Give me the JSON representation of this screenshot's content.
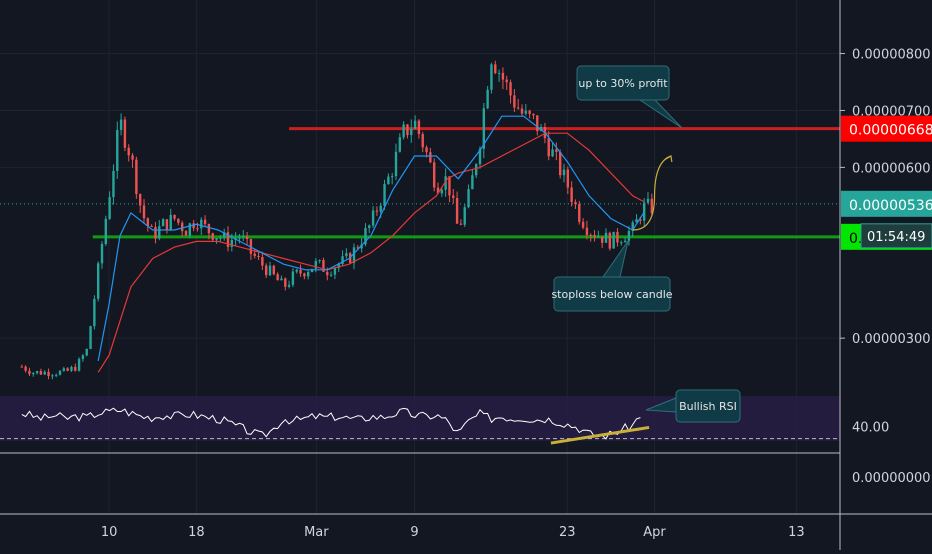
{
  "chart_data": {
    "type": "line",
    "subtype": "candlestick-price-with-rsi-panel",
    "title": "",
    "xlabel": "",
    "ylabel": "",
    "x_tick_labels": [
      "10",
      "18",
      "Mar",
      "9",
      "23",
      "Apr",
      "13"
    ],
    "x_tick_days": [
      10,
      18,
      29,
      38,
      52,
      60,
      73
    ],
    "x_range_days": [
      0,
      77
    ],
    "price_axis": {
      "ylim": [
        2.3e-06,
        8.8e-06
      ],
      "tick_labels": [
        "0.00000800",
        "0.00000700",
        "0.00000600",
        "0.00000300"
      ],
      "tick_values": [
        8e-06,
        7e-06,
        6e-06,
        3e-06
      ]
    },
    "price_markers": [
      {
        "label": "0.00000668",
        "value": 6.68e-06,
        "color": "#ff0000",
        "text_color": "#ffffff"
      },
      {
        "label": "0.00000536",
        "value": 5.36e-06,
        "color": "#26a69a",
        "text_color": "#ffffff"
      },
      {
        "label": "0.00000478",
        "value": 4.78e-06,
        "color": "#00e600",
        "text_color": "#000000"
      }
    ],
    "countdown_label": "01:54:49",
    "lower_axis_label": "0.00000000",
    "price_series": {
      "x": [
        2,
        3,
        4,
        5,
        6,
        7,
        8,
        9,
        10,
        11,
        12,
        13,
        14,
        15,
        16,
        17,
        18,
        19,
        20,
        21,
        22,
        23,
        24,
        25,
        26,
        27,
        28,
        29,
        30,
        31,
        32,
        33,
        34,
        35,
        36,
        37,
        38,
        39,
        40,
        41,
        42,
        43,
        44,
        45,
        46,
        47,
        48,
        49,
        50,
        51,
        52,
        53,
        54,
        55,
        56,
        57,
        58,
        59,
        60
      ],
      "y": [
        2.5e-06,
        2.4e-06,
        2.4e-06,
        2.4e-06,
        2.4e-06,
        2.5e-06,
        2.8e-06,
        4.2e-06,
        5.5e-06,
        6.8e-06,
        6.2e-06,
        5.2e-06,
        4.8e-06,
        5e-06,
        5.1e-06,
        4.9e-06,
        5.1e-06,
        4.9e-06,
        4.8e-06,
        4.7e-06,
        4.8e-06,
        4.5e-06,
        4.3e-06,
        4.1e-06,
        3.9e-06,
        4.1e-06,
        4.2e-06,
        4.3e-06,
        4.2e-06,
        4.3e-06,
        4.4e-06,
        4.7e-06,
        5e-06,
        5.5e-06,
        6e-06,
        6.6e-06,
        6.8e-06,
        6.3e-06,
        5.7e-06,
        5.8e-06,
        4.9e-06,
        5.5e-06,
        6.5e-06,
        8e-06,
        7.6e-06,
        7.2e-06,
        6.9e-06,
        6.8e-06,
        6.5e-06,
        6.1e-06,
        5.7e-06,
        5.2e-06,
        4.9e-06,
        4.8e-06,
        4.7e-06,
        4.8e-06,
        4.9e-06,
        5.3e-06,
        5.3e-06
      ]
    },
    "ma_fast": {
      "x": [
        9,
        10,
        11,
        12,
        14,
        16,
        18,
        20,
        22,
        24,
        26,
        28,
        30,
        32,
        34,
        36,
        38,
        40,
        41,
        42,
        44,
        46,
        48,
        50,
        52,
        54,
        56,
        58,
        59
      ],
      "y": [
        2.6e-06,
        3.6e-06,
        4.8e-06,
        5.2e-06,
        4.9e-06,
        4.9e-06,
        5e-06,
        4.9e-06,
        4.7e-06,
        4.5e-06,
        4.3e-06,
        4.2e-06,
        4.2e-06,
        4.4e-06,
        4.8e-06,
        5.6e-06,
        6.2e-06,
        6.2e-06,
        6e-06,
        5.8e-06,
        6.3e-06,
        6.9e-06,
        6.9e-06,
        6.6e-06,
        6.1e-06,
        5.5e-06,
        5.1e-06,
        4.9e-06,
        5.2e-06
      ]
    },
    "ma_slow": {
      "x": [
        9,
        10,
        11,
        12,
        14,
        16,
        18,
        20,
        22,
        24,
        26,
        28,
        30,
        32,
        34,
        36,
        38,
        40,
        41,
        42,
        44,
        46,
        48,
        50,
        52,
        54,
        56,
        58,
        59
      ],
      "y": [
        2.4e-06,
        2.7e-06,
        3.3e-06,
        3.9e-06,
        4.4e-06,
        4.6e-06,
        4.7e-06,
        4.7e-06,
        4.6e-06,
        4.5e-06,
        4.4e-06,
        4.3e-06,
        4.2e-06,
        4.3e-06,
        4.5e-06,
        4.8e-06,
        5.2e-06,
        5.5e-06,
        5.8e-06,
        5.9e-06,
        6e-06,
        6.2e-06,
        6.4e-06,
        6.6e-06,
        6.6e-06,
        6.3e-06,
        5.9e-06,
        5.5e-06,
        5.4e-06
      ]
    },
    "rsi_series": {
      "x": [
        2,
        3,
        4,
        5,
        6,
        7,
        8,
        9,
        10,
        11,
        12,
        13,
        14,
        15,
        16,
        17,
        18,
        19,
        20,
        21,
        22,
        23,
        24,
        25,
        26,
        27,
        28,
        29,
        30,
        31,
        32,
        33,
        34,
        35,
        36,
        37,
        38,
        39,
        40,
        41,
        42,
        43,
        44,
        45,
        46,
        47,
        48,
        49,
        50,
        51,
        52,
        53,
        54,
        55,
        56,
        57,
        58,
        59
      ],
      "y": [
        55,
        52,
        50,
        53,
        50,
        52,
        51,
        55,
        56,
        58,
        55,
        52,
        51,
        53,
        52,
        54,
        53,
        51,
        50,
        46,
        42,
        38,
        34,
        40,
        50,
        48,
        50,
        52,
        51,
        52,
        50,
        49,
        52,
        51,
        54,
        56,
        53,
        52,
        53,
        48,
        36,
        48,
        54,
        50,
        52,
        50,
        51,
        49,
        50,
        48,
        45,
        42,
        36,
        34,
        36,
        40,
        44,
        58
      ]
    },
    "rsi_panel": {
      "upper_band": 70,
      "lower_band": 30,
      "range": [
        20,
        80
      ],
      "tick_label": "40.00"
    },
    "horizontal_levels": [
      {
        "name": "resistance",
        "value": 6.68e-06,
        "color": "#cc1f1f"
      },
      {
        "name": "support",
        "value": 4.78e-06,
        "color": "#109c10"
      },
      {
        "name": "current-price",
        "value": 5.36e-06,
        "color": "#26a69a",
        "style": "dotted"
      }
    ],
    "annotations": [
      {
        "text": "up to 30% profit",
        "box_color": "#0f3a46"
      },
      {
        "text": "stoploss below candle",
        "box_color": "#0f3a46"
      },
      {
        "text": "Bullish RSI",
        "box_color": "#0f3a46"
      }
    ],
    "projection_arrow": {
      "x": [
        58,
        60,
        61.5
      ],
      "y": [
        4.9e-06,
        5.5e-06,
        6.2e-06
      ],
      "color": "#c9b037"
    },
    "rsi_trendline": {
      "x": [
        50.5,
        59.5
      ],
      "y": [
        28,
        42
      ],
      "color": "#c9b037"
    },
    "colors": {
      "up": "#26a69a",
      "down": "#ef5350",
      "ma_fast": "#2196f3",
      "ma_slow": "#e53935",
      "rsi": "#ffffff",
      "rsi_band_fill": "#2a1f4a"
    },
    "grid": true
  }
}
